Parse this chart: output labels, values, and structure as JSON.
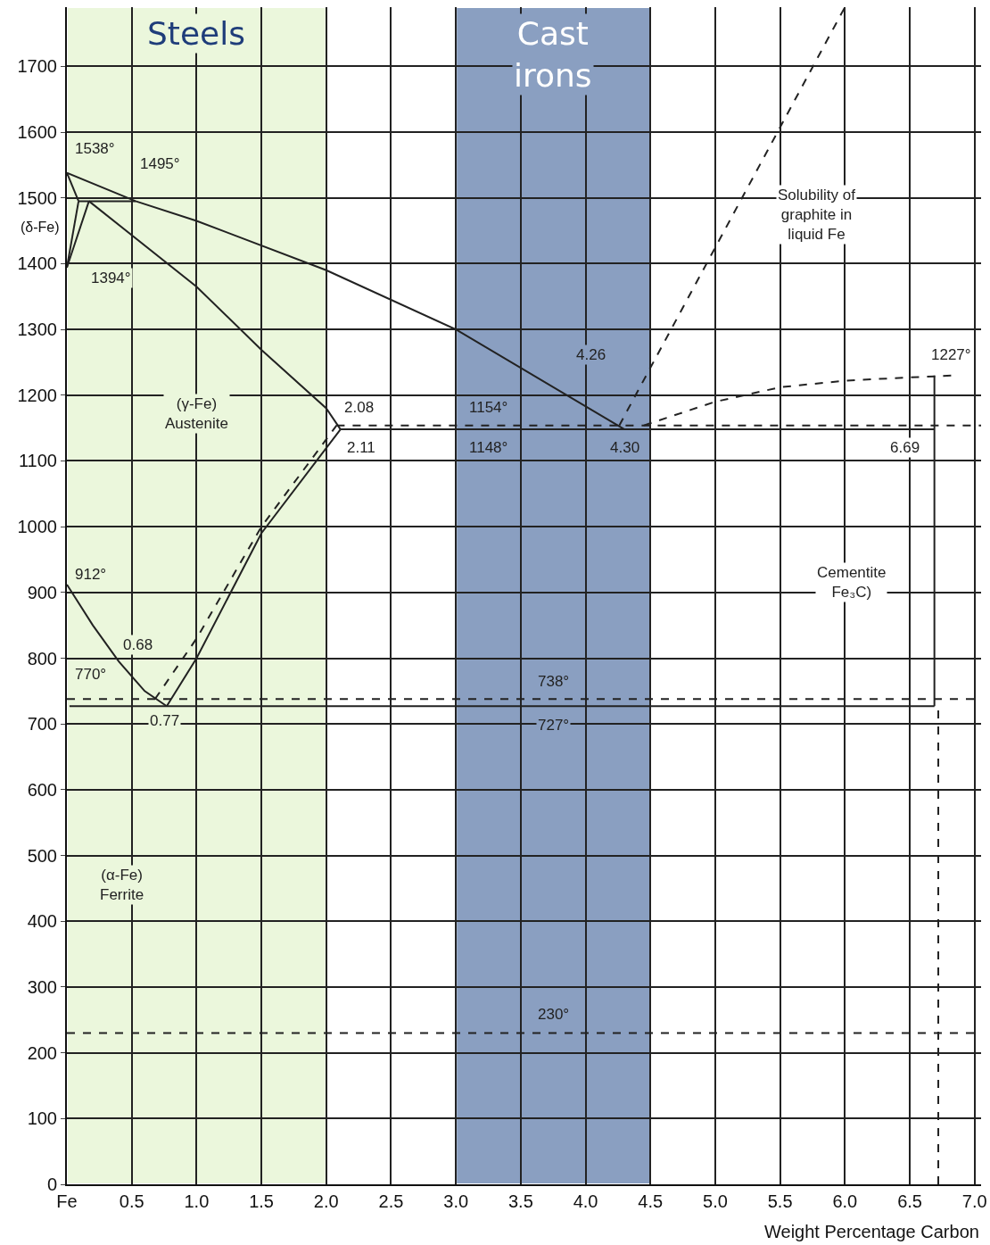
{
  "chart_data": {
    "type": "line",
    "xlabel": "Weight Percentage Carbon",
    "xlim": [
      0,
      7.05
    ],
    "ylim": [
      0,
      1790
    ],
    "xticks": [
      {
        "value": 0,
        "label": "Fe"
      },
      0.5,
      {
        "value": 1,
        "label": "1.0"
      },
      1.5,
      {
        "value": 2,
        "label": "2.0"
      },
      2.5,
      {
        "value": 3,
        "label": "3.0"
      },
      3.5,
      {
        "value": 4,
        "label": "4.0"
      },
      4.5,
      {
        "value": 5,
        "label": "5.0"
      },
      5.5,
      {
        "value": 6,
        "label": "6.0"
      },
      6.5,
      {
        "value": 7,
        "label": "7.0"
      }
    ],
    "yticks": [
      0,
      100,
      200,
      300,
      400,
      500,
      600,
      700,
      800,
      900,
      1000,
      1100,
      1200,
      1300,
      1400,
      1500,
      1600,
      1700
    ],
    "grid": true,
    "marker": "none",
    "series": [
      {
        "color": "#222222",
        "line_style": "solid",
        "x": [
          0,
          0.53,
          1.0,
          2.0,
          3.0,
          4.3
        ],
        "values": [
          1538,
          1495,
          1465,
          1390,
          1300,
          1148
        ]
      },
      {
        "color": "#222222",
        "line_style": "solid",
        "x": [
          0.17,
          1.0,
          1.5,
          2.0,
          2.11
        ],
        "values": [
          1495,
          1365,
          1269,
          1180,
          1148
        ]
      },
      {
        "color": "#222222",
        "line_style": "solid",
        "x": [
          0,
          0.09
        ],
        "values": [
          1394,
          1495
        ]
      },
      {
        "color": "#222222",
        "line_style": "solid",
        "x": [
          0,
          0.17
        ],
        "values": [
          1394,
          1495
        ]
      },
      {
        "color": "#222222",
        "line_style": "solid",
        "x": [
          0,
          0.09
        ],
        "values": [
          1538,
          1495
        ]
      },
      {
        "color": "#222222",
        "line_style": "solid",
        "x": [
          0.09,
          0.53
        ],
        "values": [
          1495,
          1495
        ]
      },
      {
        "color": "#222222",
        "line_style": "solid",
        "x": [
          0,
          0.2,
          0.4,
          0.6,
          0.77
        ],
        "values": [
          912,
          850,
          795,
          750,
          727
        ]
      },
      {
        "color": "#222222",
        "line_style": "solid",
        "x": [
          0.77,
          1.0,
          1.5,
          2.11
        ],
        "values": [
          727,
          800,
          990,
          1148
        ]
      },
      {
        "color": "#222222",
        "line_style": "dashed",
        "x": [
          0.68,
          1.0,
          1.5,
          2.08
        ],
        "values": [
          738,
          830,
          1000,
          1154
        ]
      },
      {
        "color": "#222222",
        "line_style": "solid",
        "x": [
          2.11,
          6.69
        ],
        "values": [
          1148,
          1148
        ]
      },
      {
        "color": "#222222",
        "line_style": "dashed",
        "x": [
          2.08,
          7.05
        ],
        "values": [
          1154,
          1154
        ]
      },
      {
        "color": "#222222",
        "line_style": "solid",
        "x": [
          0.02,
          6.69
        ],
        "values": [
          727,
          727
        ]
      },
      {
        "color": "#222222",
        "line_style": "dashed",
        "x": [
          0,
          7.05
        ],
        "values": [
          738,
          738
        ]
      },
      {
        "color": "#222222",
        "line_style": "dashed",
        "x": [
          0,
          7.05
        ],
        "values": [
          230,
          230
        ]
      },
      {
        "color": "#222222",
        "line_style": "dashed",
        "x": [
          4.26,
          6.0
        ],
        "values": [
          1154,
          1790
        ]
      },
      {
        "color": "#222222",
        "line_style": "dashed",
        "x": [
          4.45,
          5.0,
          5.5,
          6.0,
          6.5,
          6.85
        ],
        "values": [
          1154,
          1190,
          1212,
          1222,
          1227,
          1230
        ]
      },
      {
        "color": "#222222",
        "line_style": "solid",
        "x": [
          6.69,
          6.69
        ],
        "values": [
          727,
          1230
        ]
      },
      {
        "color": "#222222",
        "line_style": "dashed",
        "x": [
          6.72,
          6.72
        ],
        "values": [
          0,
          727
        ]
      }
    ],
    "bands": [
      {
        "axis": "x",
        "from": 0,
        "to": 2.0,
        "label": "Steels",
        "color": "#ebf7dc"
      },
      {
        "axis": "x",
        "from": 3.0,
        "to": 4.5,
        "label": "Cast irons",
        "color": "#8a9fc1"
      }
    ],
    "annotations": [
      "1538°",
      "1495°",
      "1394°",
      "(δ-Fe)",
      "(γ-Fe)\nAustenite",
      "912°",
      "770°",
      "0.68",
      "0.77",
      "(α-Fe)\nFerrite",
      "2.08",
      "2.11",
      "1154°",
      "1148°",
      "4.26",
      "4.30",
      "6.69",
      "1227°",
      "Cementite\nFe₃C)",
      "Solubility of\ngraphite in\nliquid Fe",
      "738°",
      "727°",
      "230°"
    ]
  }
}
